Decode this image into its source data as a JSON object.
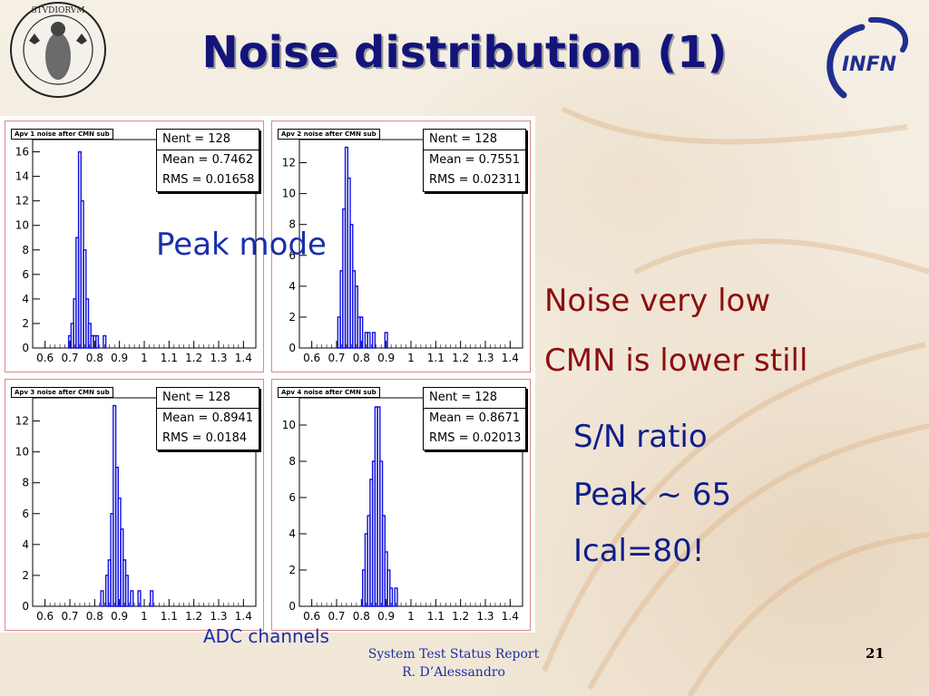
{
  "slide": {
    "title": "Noise distribution (1)",
    "logo_text": "INFN",
    "peak_mode_label": "Peak mode",
    "x_axis_caption": "ADC channels",
    "bullets_red": [
      "Noise very low",
      "CMN is lower still"
    ],
    "bullets_blue": [
      "S/N ratio",
      "Peak ~ 65",
      "Ical=80!"
    ],
    "footer_line1": "System Test  Status Report",
    "footer_line2": "R. D’Alessandro",
    "page_number": "21",
    "colors": {
      "title": "#13147a",
      "red_text": "#8c0f0f",
      "blue_text": "#0d1e8c",
      "histogram": "#1010e0"
    }
  },
  "chart_data": [
    {
      "type": "bar",
      "title": "Apv 1 noise after CMN sub",
      "stats": {
        "nent": "Nent = 128",
        "mean": "Mean  = 0.7462",
        "rms": "RMS   = 0.01658"
      },
      "xlim": [
        0.55,
        1.45
      ],
      "ylim": [
        0,
        17
      ],
      "x_ticks": [
        "0.6",
        "0.7",
        "0.8",
        "0.9",
        "1",
        "1.1",
        "1.2",
        "1.3",
        "1.4"
      ],
      "y_ticks": [
        "0",
        "2",
        "4",
        "6",
        "8",
        "10",
        "12",
        "14",
        "16"
      ],
      "x": [
        0.7,
        0.71,
        0.72,
        0.73,
        0.74,
        0.75,
        0.76,
        0.77,
        0.78,
        0.79,
        0.8,
        0.81,
        0.84
      ],
      "values": [
        1,
        2,
        4,
        9,
        16,
        12,
        8,
        4,
        2,
        1,
        1,
        1,
        1
      ]
    },
    {
      "type": "bar",
      "title": "Apv 2 noise after CMN sub",
      "stats": {
        "nent": "Nent = 128",
        "mean": "Mean  = 0.7551",
        "rms": "RMS   = 0.02311"
      },
      "xlim": [
        0.55,
        1.45
      ],
      "ylim": [
        0,
        13.5
      ],
      "x_ticks": [
        "0.6",
        "0.7",
        "0.8",
        "0.9",
        "1",
        "1.1",
        "1.2",
        "1.3",
        "1.4"
      ],
      "y_ticks": [
        "0",
        "2",
        "4",
        "6",
        "8",
        "10",
        "12"
      ],
      "x": [
        0.71,
        0.72,
        0.73,
        0.74,
        0.75,
        0.76,
        0.77,
        0.78,
        0.79,
        0.8,
        0.82,
        0.83,
        0.85,
        0.9
      ],
      "values": [
        2,
        5,
        9,
        13,
        11,
        8,
        5,
        4,
        2,
        2,
        1,
        1,
        1,
        1
      ]
    },
    {
      "type": "bar",
      "title": "Apv 3 noise after CMN sub",
      "stats": {
        "nent": "Nent = 128",
        "mean": "Mean  = 0.8941",
        "rms": "RMS   = 0.0184"
      },
      "xlim": [
        0.55,
        1.45
      ],
      "ylim": [
        0,
        13.5
      ],
      "x_ticks": [
        "0.6",
        "0.7",
        "0.8",
        "0.9",
        "1",
        "1.1",
        "1.2",
        "1.3",
        "1.4"
      ],
      "y_ticks": [
        "0",
        "2",
        "4",
        "6",
        "8",
        "10",
        "12"
      ],
      "x": [
        0.83,
        0.85,
        0.86,
        0.87,
        0.88,
        0.89,
        0.9,
        0.91,
        0.92,
        0.93,
        0.95,
        0.98,
        1.03
      ],
      "values": [
        1,
        2,
        3,
        6,
        13,
        9,
        7,
        5,
        3,
        2,
        1,
        1,
        1
      ]
    },
    {
      "type": "bar",
      "title": "Apv 4 noise after CMN sub",
      "stats": {
        "nent": "Nent = 128",
        "mean": "Mean  = 0.8671",
        "rms": "RMS   = 0.02013"
      },
      "xlim": [
        0.55,
        1.45
      ],
      "ylim": [
        0,
        11.5
      ],
      "x_ticks": [
        "0.6",
        "0.7",
        "0.8",
        "0.9",
        "1",
        "1.1",
        "1.2",
        "1.3",
        "1.4"
      ],
      "y_ticks": [
        "0",
        "2",
        "4",
        "6",
        "8",
        "10"
      ],
      "x": [
        0.81,
        0.82,
        0.83,
        0.84,
        0.85,
        0.86,
        0.87,
        0.88,
        0.89,
        0.9,
        0.91,
        0.92,
        0.94
      ],
      "values": [
        2,
        4,
        5,
        7,
        8,
        11,
        11,
        8,
        5,
        3,
        2,
        1,
        1
      ]
    }
  ]
}
